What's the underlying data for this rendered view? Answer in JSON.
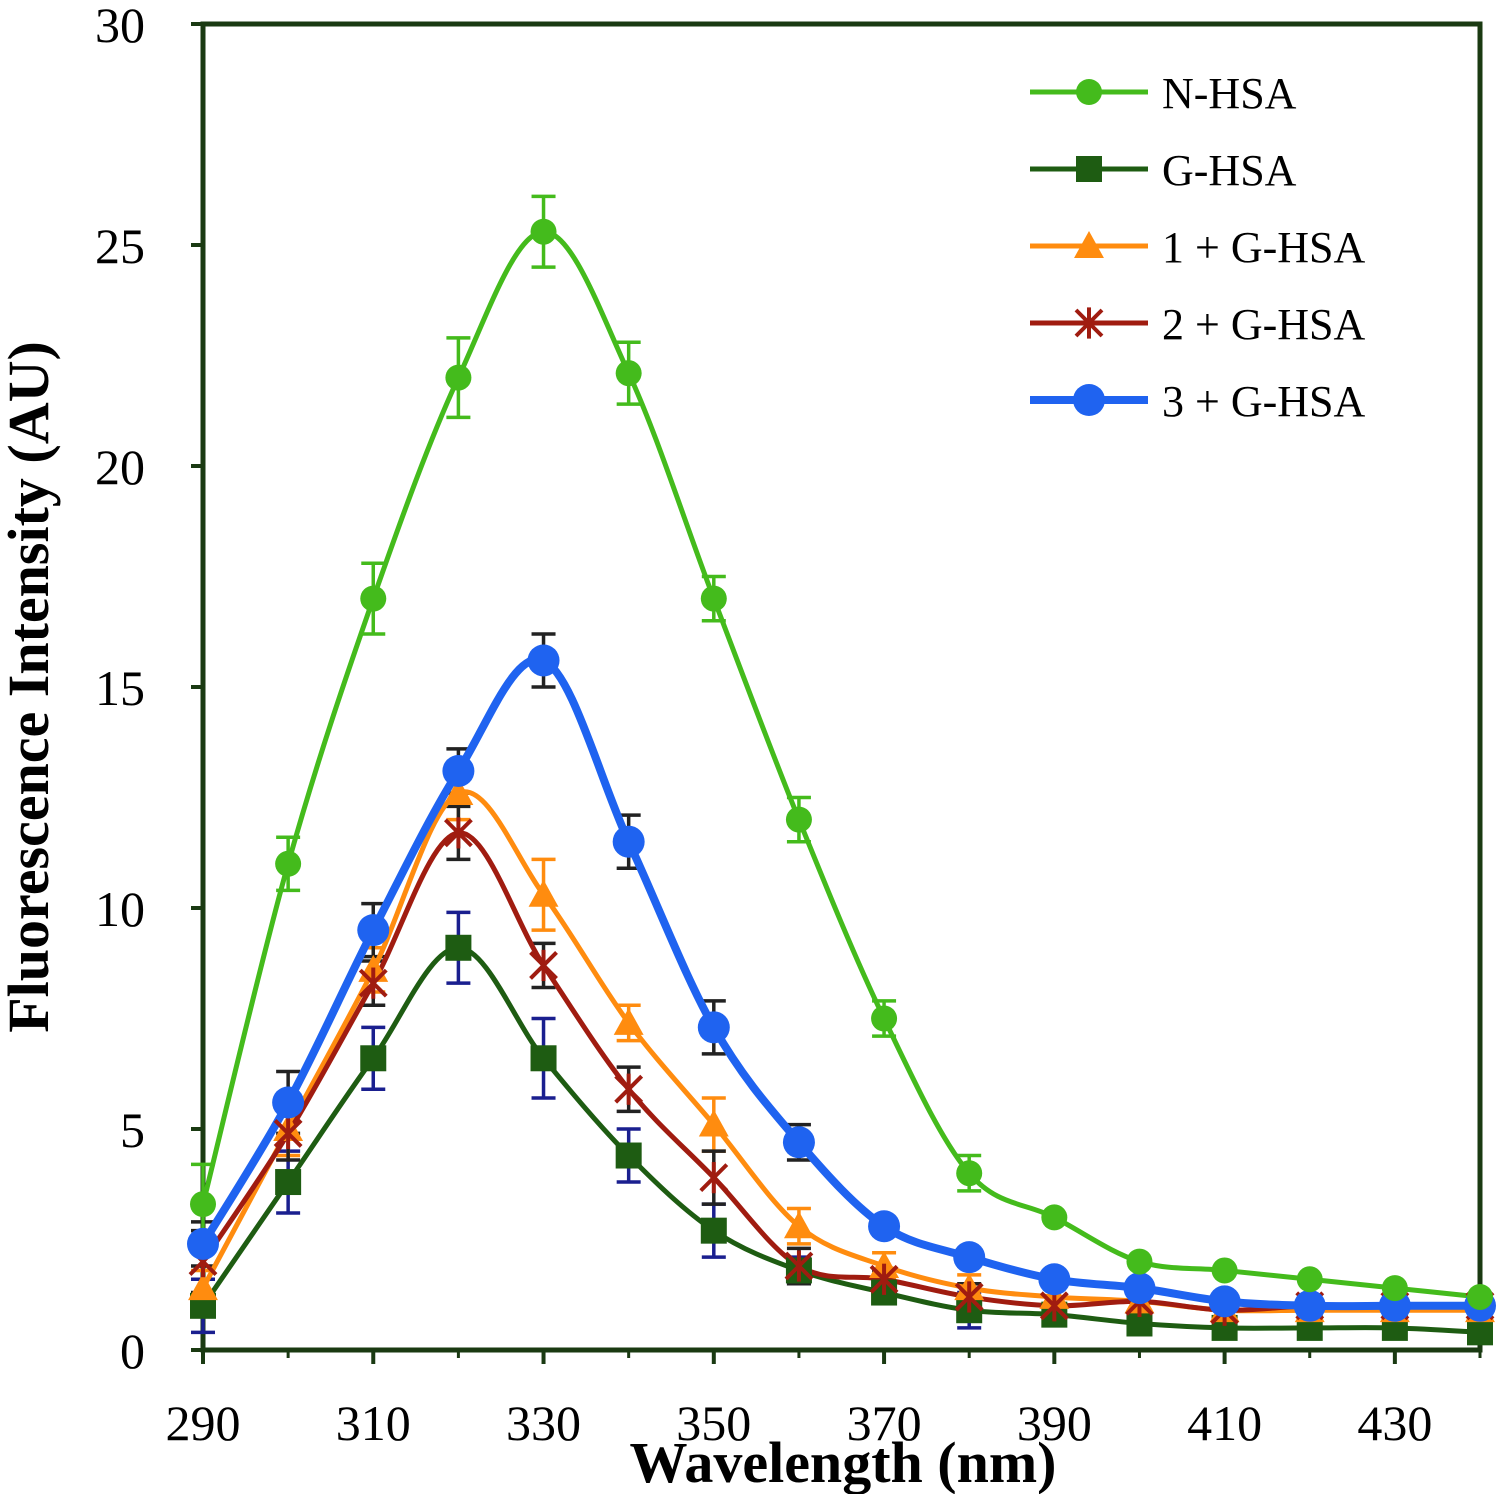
{
  "chart_data": {
    "type": "line",
    "title": "",
    "xlabel": "Wavelength (nm)",
    "ylabel": "Fluorescence Intensity (AU)",
    "xlim": [
      290,
      440
    ],
    "ylim": [
      0,
      30
    ],
    "x_ticks": [
      290,
      310,
      330,
      350,
      370,
      390,
      410,
      430
    ],
    "y_ticks": [
      0,
      5,
      10,
      15,
      20,
      25,
      30
    ],
    "grid": false,
    "legend_position": "top-right",
    "x": [
      290,
      300,
      310,
      320,
      330,
      340,
      350,
      360,
      370,
      380,
      390,
      400,
      410,
      420,
      430,
      440
    ],
    "series": [
      {
        "name": "N-HSA",
        "color": "#44bb1c",
        "marker": "circle",
        "values": [
          3.3,
          11.0,
          17.0,
          22.0,
          25.3,
          22.1,
          17.0,
          12.0,
          7.5,
          4.0,
          3.0,
          2.0,
          1.8,
          1.6,
          1.4,
          1.2
        ],
        "errors": [
          0.9,
          0.6,
          0.8,
          0.9,
          0.8,
          0.7,
          0.5,
          0.5,
          0.4,
          0.4,
          0.0,
          0.0,
          0.0,
          0.0,
          0.0,
          0.0
        ]
      },
      {
        "name": "G-HSA",
        "color": "#1e5c12",
        "marker": "square",
        "values": [
          1.0,
          3.8,
          6.6,
          9.1,
          6.6,
          4.4,
          2.7,
          1.8,
          1.3,
          0.9,
          0.8,
          0.6,
          0.5,
          0.5,
          0.5,
          0.4
        ],
        "errors": [
          0.6,
          0.7,
          0.7,
          0.8,
          0.9,
          0.6,
          0.6,
          0.3,
          0.2,
          0.4,
          0.0,
          0.0,
          0.0,
          0.0,
          0.0,
          0.0
        ]
      },
      {
        "name": "1 + G-HSA",
        "color": "#ff8c0f",
        "marker": "triangle",
        "values": [
          1.4,
          5.0,
          8.6,
          12.6,
          10.3,
          7.4,
          5.1,
          2.8,
          1.9,
          1.4,
          1.2,
          1.1,
          0.9,
          0.9,
          0.9,
          0.9
        ],
        "errors": [
          0.4,
          0.6,
          0.5,
          0.6,
          0.8,
          0.4,
          0.6,
          0.4,
          0.3,
          0.3,
          0.0,
          0.0,
          0.0,
          0.0,
          0.0,
          0.0
        ]
      },
      {
        "name": "2 + G-HSA",
        "color": "#a01c10",
        "marker": "asterisk",
        "values": [
          2.0,
          4.9,
          8.3,
          11.7,
          8.7,
          5.9,
          3.9,
          1.9,
          1.6,
          1.2,
          1.0,
          1.1,
          0.9,
          1.0,
          1.0,
          1.0
        ],
        "errors": [
          0.7,
          0.6,
          0.5,
          0.6,
          0.5,
          0.5,
          0.6,
          0.4,
          0.2,
          0.3,
          0.0,
          0.0,
          0.0,
          0.0,
          0.0,
          0.0
        ]
      },
      {
        "name": "3 + G-HSA",
        "color": "#1f63f0",
        "marker": "circle",
        "values": [
          2.4,
          5.6,
          9.5,
          13.1,
          15.6,
          11.5,
          7.3,
          4.7,
          2.8,
          2.1,
          1.6,
          1.4,
          1.1,
          1.0,
          1.0,
          1.0
        ],
        "errors": [
          0.5,
          0.7,
          0.6,
          0.5,
          0.6,
          0.6,
          0.6,
          0.4,
          0.2,
          0.2,
          0.0,
          0.0,
          0.0,
          0.0,
          0.0,
          0.0
        ]
      }
    ]
  }
}
